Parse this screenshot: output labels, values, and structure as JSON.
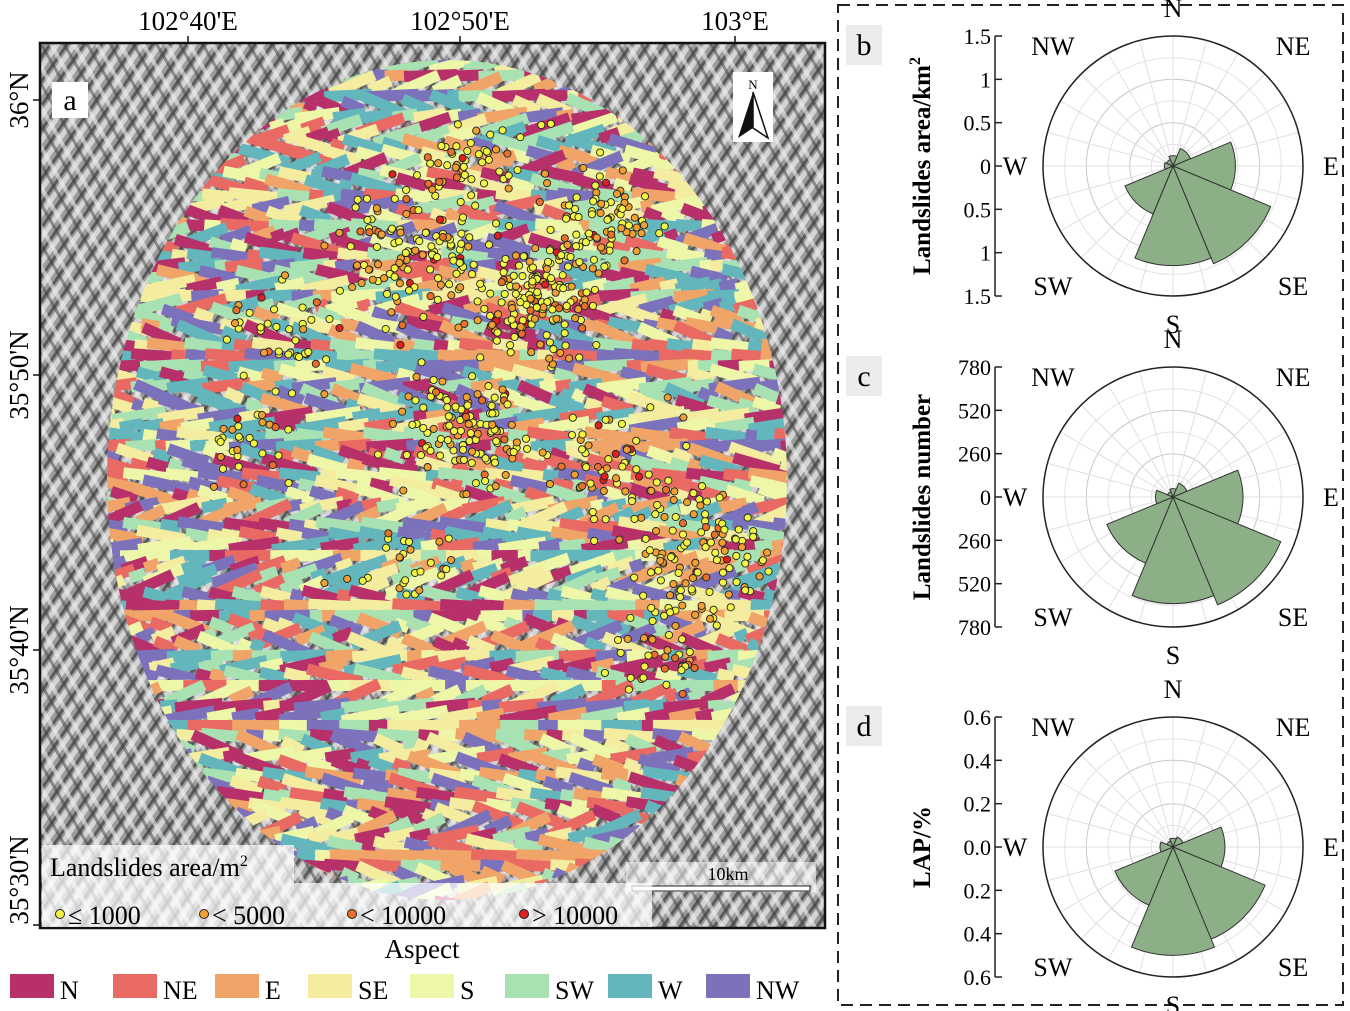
{
  "map": {
    "panel_letter": "a",
    "lon_ticks": [
      "102°40'E",
      "102°50'E",
      "103°E"
    ],
    "lat_ticks": [
      "36°N",
      "35°50'N",
      "35°40'N",
      "35°30'N"
    ],
    "north_label": "N",
    "scale_label": "10km",
    "legend_title": "Landslides area/m",
    "legend_title_sup": "2",
    "legend_items": [
      {
        "label": "≤ 1000",
        "color": "#f2f542"
      },
      {
        "label": "< 5000",
        "color": "#f0a030"
      },
      {
        "label": "< 10000",
        "color": "#e8702a"
      },
      {
        "label": "> 10000",
        "color": "#e02020"
      }
    ],
    "colors": {
      "hillshade": "#9a9a9a",
      "point_stroke": "#222222"
    }
  },
  "aspect_legend": {
    "title": "Aspect",
    "items": [
      {
        "label": "N",
        "color": "#b8306a"
      },
      {
        "label": "NE",
        "color": "#e86a62"
      },
      {
        "label": "E",
        "color": "#f0a468"
      },
      {
        "label": "SE",
        "color": "#f4ec9e"
      },
      {
        "label": "S",
        "color": "#eef7a8"
      },
      {
        "label": "SW",
        "color": "#a8e2b2"
      },
      {
        "label": "W",
        "color": "#62b6bc"
      },
      {
        "label": "NW",
        "color": "#7c72bc"
      }
    ]
  },
  "chart_data": [
    {
      "type": "polar-bar",
      "panel_letter": "b",
      "ylabel": "Landslides area/km",
      "ylabel_sup": "2",
      "directions": [
        "N",
        "NE",
        "E",
        "SE",
        "S",
        "SW",
        "W",
        "NW"
      ],
      "values": [
        0.12,
        0.22,
        0.72,
        1.22,
        1.15,
        0.6,
        0.1,
        0.08
      ],
      "rmax": 1.5,
      "ticks": [
        "1.5",
        "1",
        "0.5",
        "0",
        "0.5",
        "1",
        "1.5"
      ],
      "bar_color": "#8daf88"
    },
    {
      "type": "polar-bar",
      "panel_letter": "c",
      "ylabel": "Landslides number",
      "directions": [
        "N",
        "NE",
        "E",
        "SE",
        "S",
        "SW",
        "W",
        "NW"
      ],
      "values": [
        50,
        90,
        420,
        700,
        640,
        430,
        105,
        35
      ],
      "rmax": 780,
      "ticks": [
        "780",
        "520",
        "260",
        "0",
        "260",
        "520",
        "780"
      ],
      "bar_color": "#8daf88"
    },
    {
      "type": "polar-bar",
      "panel_letter": "d",
      "ylabel": "LAP/%",
      "directions": [
        "N",
        "NE",
        "E",
        "SE",
        "S",
        "SW",
        "W",
        "NW"
      ],
      "values": [
        0.04,
        0.05,
        0.24,
        0.46,
        0.5,
        0.29,
        0.06,
        0.03
      ],
      "rmax": 0.6,
      "ticks": [
        "0.6",
        "0.4",
        "0.2",
        "0.0",
        "0.2",
        "0.4",
        "0.6"
      ],
      "bar_color": "#8daf88"
    }
  ]
}
